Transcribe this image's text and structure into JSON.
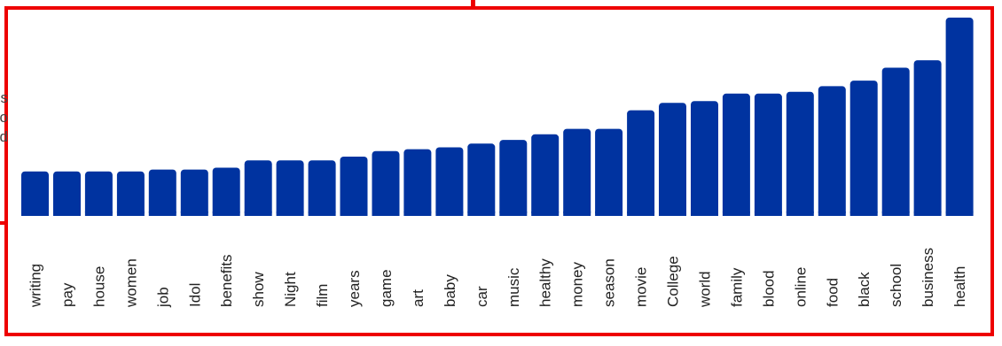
{
  "chart_data": {
    "type": "bar",
    "categories": [
      "writing",
      "pay",
      "house",
      "women",
      "job",
      "Idol",
      "benefits",
      "show",
      "Night",
      "film",
      "years",
      "game",
      "art",
      "baby",
      "car",
      "music",
      "healthy",
      "money",
      "season",
      "movie",
      "College",
      "world",
      "family",
      "blood",
      "online",
      "food",
      "black",
      "school",
      "business",
      "health"
    ],
    "values": [
      24,
      24,
      24,
      24,
      25,
      25,
      26,
      30,
      30,
      30,
      32,
      35,
      36,
      37,
      39,
      41,
      44,
      47,
      47,
      57,
      61,
      62,
      66,
      66,
      67,
      70,
      73,
      80,
      84,
      107
    ],
    "ylim": [
      0,
      110
    ],
    "colors": {
      "bar": "#0033a0",
      "frame": "#ee0000"
    },
    "grid": false,
    "legend": "none"
  },
  "background_fragments": [
    "ls",
    "o",
    "d"
  ]
}
